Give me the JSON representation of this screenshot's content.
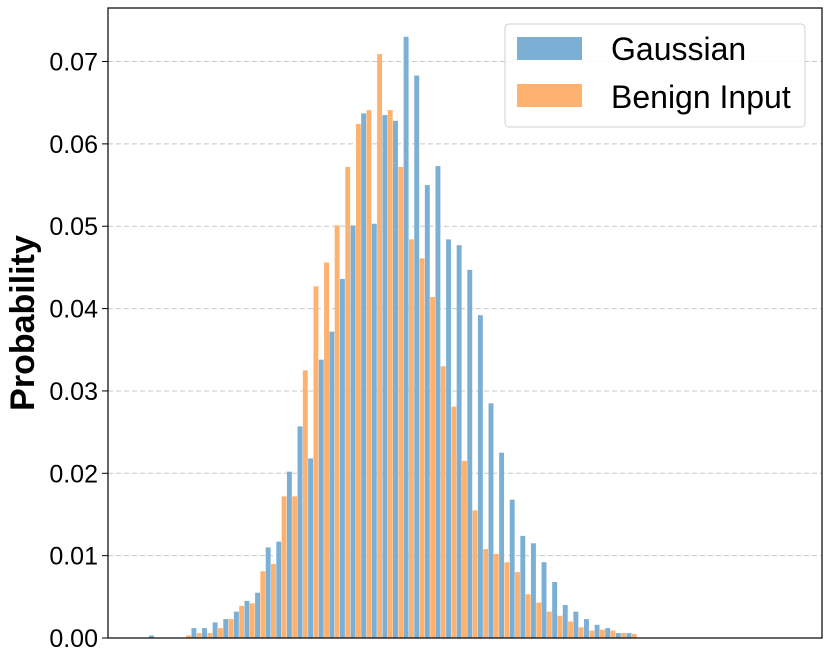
{
  "chart_data": {
    "type": "bar",
    "title": "",
    "xlabel": "",
    "ylabel": "Probability",
    "ylim": [
      0,
      0.0765
    ],
    "yticks": [
      0.0,
      0.01,
      0.02,
      0.03,
      0.04,
      0.05,
      0.06,
      0.07
    ],
    "ytick_labels": [
      "0.00",
      "0.01",
      "0.02",
      "0.03",
      "0.04",
      "0.05",
      "0.06",
      "0.07"
    ],
    "x_ticks_shown": false,
    "grid": "horizontal, dashed",
    "legend_position": "top-right",
    "bin_count": 59,
    "series": [
      {
        "name": "Gaussian",
        "color": "#7bafd4",
        "values": [
          0.0003,
          0,
          0,
          0,
          0.0012,
          0.0012,
          0.0019,
          0.0023,
          0.0032,
          0.0045,
          0.0055,
          0.011,
          0.0117,
          0.0202,
          0.0257,
          0.0218,
          0.0338,
          0.0372,
          0.0436,
          0.0501,
          0.0637,
          0.0503,
          0.0635,
          0.0628,
          0.073,
          0.0683,
          0.055,
          0.0573,
          0.0484,
          0.0477,
          0.0447,
          0.0392,
          0.0285,
          0.0225,
          0.0168,
          0.0124,
          0.0115,
          0.0092,
          0.0068,
          0.004,
          0.0032,
          0.0023,
          0.0016,
          0.0012,
          0.0006,
          0.0006,
          0,
          0,
          0,
          0,
          0,
          0,
          0,
          0,
          0,
          0,
          0,
          0,
          0
        ]
      },
      {
        "name": "Benign Input",
        "color": "#ffb170",
        "values": [
          0,
          0,
          0,
          0.0003,
          0.0006,
          0.0006,
          0.0012,
          0.0023,
          0.0039,
          0.0042,
          0.0081,
          0.009,
          0.0172,
          0.0172,
          0.0325,
          0.0427,
          0.0456,
          0.0501,
          0.0572,
          0.0624,
          0.0641,
          0.0709,
          0.0641,
          0.0572,
          0.0484,
          0.0461,
          0.0414,
          0.033,
          0.0281,
          0.0215,
          0.0155,
          0.0108,
          0.0102,
          0.0092,
          0.008,
          0.0053,
          0.0043,
          0.0032,
          0.0027,
          0.002,
          0.0013,
          0.0009,
          0.001,
          0.0009,
          0.0006,
          0.0005,
          0,
          0,
          0,
          0,
          0,
          0,
          0,
          0,
          0,
          0,
          0,
          0,
          0
        ]
      }
    ]
  }
}
